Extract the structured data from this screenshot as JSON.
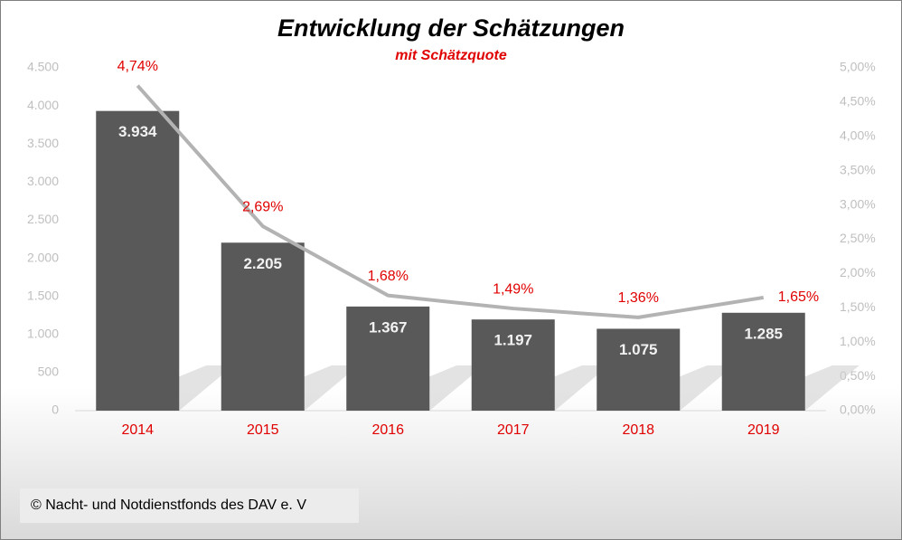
{
  "chart_data": {
    "type": "bar",
    "title": "Entwicklung der Schätzungen",
    "subtitle": "mit Schätzquote",
    "source": "© Nacht- und Notdienstfonds des DAV e. V",
    "categories": [
      "2014",
      "2015",
      "2016",
      "2017",
      "2018",
      "2019"
    ],
    "series": [
      {
        "type": "bar",
        "color": "#595959",
        "values": [
          3934,
          2205,
          1367,
          1197,
          1075,
          1285
        ],
        "value_labels": [
          "3.934",
          "2.205",
          "1.367",
          "1.197",
          "1.075",
          "1.285"
        ]
      },
      {
        "type": "line",
        "axis": "y2",
        "color": "#b3b3b3",
        "values": [
          4.74,
          2.69,
          1.68,
          1.49,
          1.36,
          1.65
        ],
        "value_labels": [
          "4,74%",
          "2,69%",
          "1,68%",
          "1,49%",
          "1,36%",
          "1,65%"
        ]
      }
    ],
    "ylim": [
      0,
      4500
    ],
    "yticks": [
      {
        "value": 0,
        "label": "0"
      },
      {
        "value": 500,
        "label": "500"
      },
      {
        "value": 1000,
        "label": "1.000"
      },
      {
        "value": 1500,
        "label": "1.500"
      },
      {
        "value": 2000,
        "label": "2.000"
      },
      {
        "value": 2500,
        "label": "2.500"
      },
      {
        "value": 3000,
        "label": "3.000"
      },
      {
        "value": 3500,
        "label": "3.500"
      },
      {
        "value": 4000,
        "label": "4.000"
      },
      {
        "value": 4500,
        "label": "4.500"
      }
    ],
    "y2lim": [
      0,
      5
    ],
    "y2ticks": [
      {
        "value": 0,
        "label": "0,00%"
      },
      {
        "value": 0.5,
        "label": "0,50%"
      },
      {
        "value": 1,
        "label": "1,00%"
      },
      {
        "value": 1.5,
        "label": "1,50%"
      },
      {
        "value": 2,
        "label": "2,00%"
      },
      {
        "value": 2.5,
        "label": "2,50%"
      },
      {
        "value": 3,
        "label": "3,00%"
      },
      {
        "value": 3.5,
        "label": "3,50%"
      },
      {
        "value": 4,
        "label": "4,00%"
      },
      {
        "value": 4.5,
        "label": "4,50%"
      },
      {
        "value": 5,
        "label": "5,00%"
      }
    ],
    "grid": false
  }
}
